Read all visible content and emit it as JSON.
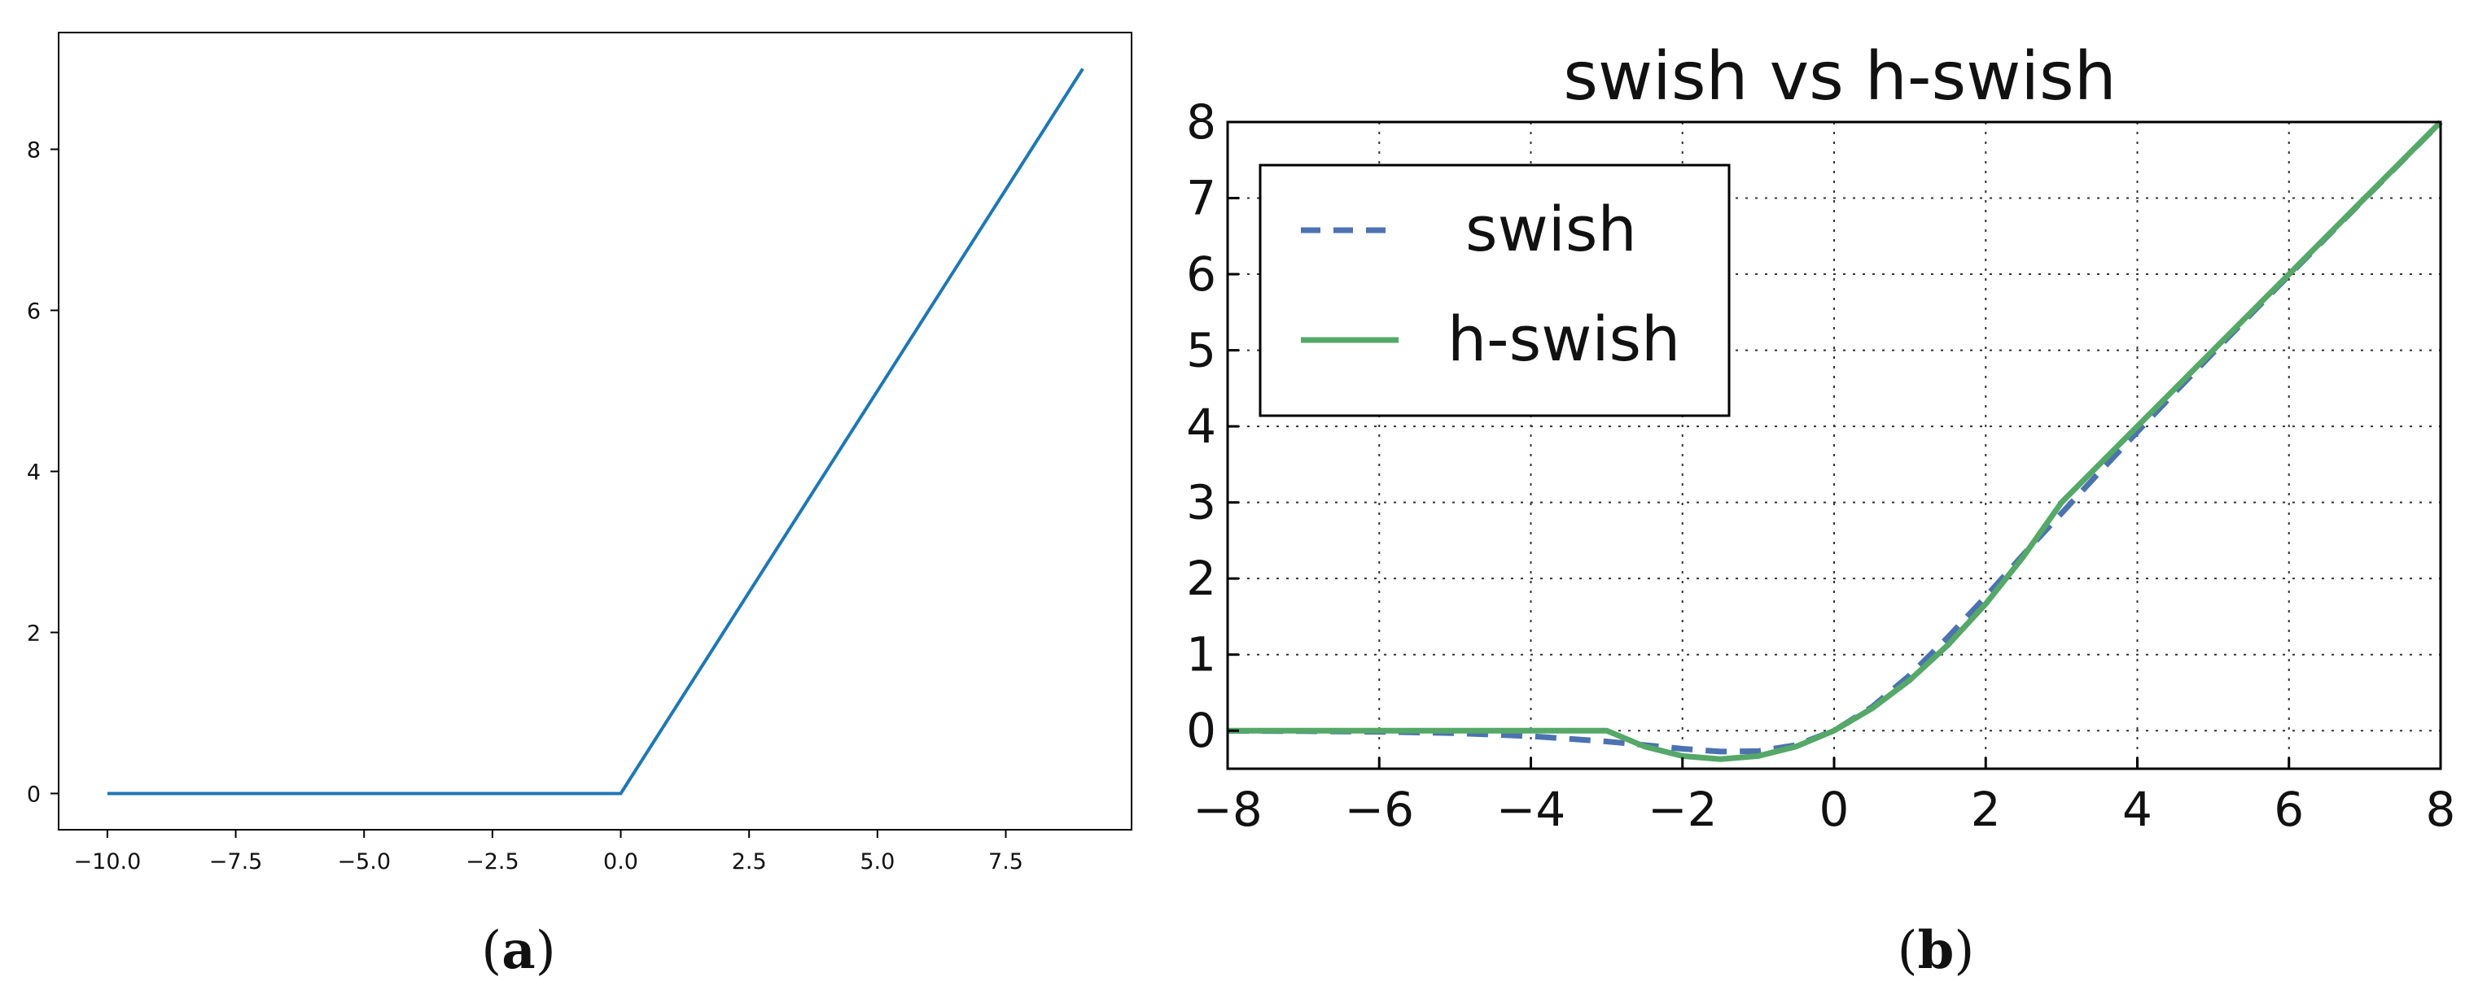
{
  "chart_data": [
    {
      "panel_label": "(a)",
      "panel_letter": "a",
      "type": "line",
      "title": "",
      "xlabel": "",
      "ylabel": "",
      "xlim": [
        -10.95,
        9.95
      ],
      "ylim": [
        -0.45,
        9.45
      ],
      "xticks": [
        -10,
        -7.5,
        -5,
        -2.5,
        0,
        2.5,
        5,
        7.5
      ],
      "xtick_labels": [
        "−10.0",
        "−7.5",
        "−5.0",
        "−2.5",
        "0.0",
        "2.5",
        "5.0",
        "7.5"
      ],
      "yticks": [
        0,
        2,
        4,
        6,
        8
      ],
      "ytick_labels": [
        "0",
        "2",
        "4",
        "6",
        "8"
      ],
      "grid": false,
      "legend": "none",
      "series": [
        {
          "color": "#1f77b4",
          "style": "solid",
          "x": [
            -10,
            0,
            9
          ],
          "y": [
            0,
            0,
            9
          ]
        }
      ]
    },
    {
      "panel_label": "(b)",
      "panel_letter": "b",
      "type": "line",
      "title": "swish vs h-swish",
      "xlabel": "",
      "ylabel": "",
      "xlim": [
        -8,
        8
      ],
      "ylim": [
        -0.5,
        8
      ],
      "xticks": [
        -8,
        -6,
        -4,
        -2,
        0,
        2,
        4,
        6,
        8
      ],
      "xtick_labels": [
        "−8",
        "−6",
        "−4",
        "−2",
        "0",
        "2",
        "4",
        "6",
        "8"
      ],
      "yticks": [
        0,
        1,
        2,
        3,
        4,
        5,
        6,
        7,
        8
      ],
      "ytick_labels": [
        "0",
        "1",
        "2",
        "3",
        "4",
        "5",
        "6",
        "7",
        "8"
      ],
      "grid": true,
      "legend": "top-left",
      "series": [
        {
          "name": "swish",
          "color": "#4c72b0",
          "style": "dashed",
          "x": [
            -8,
            -7,
            -6,
            -5,
            -4,
            -3,
            -2.5,
            -2,
            -1.5,
            -1,
            -0.5,
            0,
            0.5,
            1,
            1.5,
            2,
            2.5,
            3,
            3.5,
            4,
            4.5,
            5,
            6,
            7,
            8
          ],
          "y": [
            -0.003,
            -0.006,
            -0.015,
            -0.033,
            -0.072,
            -0.142,
            -0.189,
            -0.238,
            -0.274,
            -0.269,
            -0.189,
            0,
            0.311,
            0.731,
            1.227,
            1.762,
            2.319,
            2.857,
            3.396,
            3.928,
            4.451,
            4.967,
            5.985,
            6.994,
            7.997
          ]
        },
        {
          "name": "h-swish",
          "color": "#55a868",
          "style": "solid",
          "x": [
            -8,
            -3,
            -2.5,
            -2,
            -1.5,
            -1,
            -0.5,
            0,
            0.5,
            1,
            1.5,
            2,
            2.5,
            3,
            4,
            5,
            6,
            7,
            8
          ],
          "y": [
            0,
            0,
            -0.208,
            -0.333,
            -0.375,
            -0.333,
            -0.208,
            0,
            0.292,
            0.667,
            1.125,
            1.667,
            2.292,
            3,
            4,
            5,
            6,
            7,
            8
          ]
        }
      ]
    }
  ]
}
